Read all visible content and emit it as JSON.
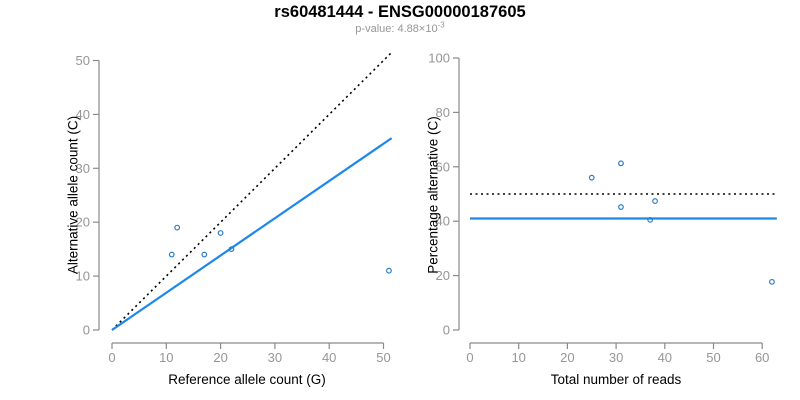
{
  "header": {
    "title": "rs60481444 - ENSG00000187605",
    "pvalue_prefix": "p-value: 4.88×10",
    "pvalue_exponent": "-3"
  },
  "colors": {
    "point": "#2b7cc9",
    "fit_line": "#1e87eb",
    "reference_line": "#000000",
    "axis": "#8a8a8a",
    "tick_label": "#969696",
    "axis_title": "#000000",
    "title": "#000000",
    "subtitle": "#969696"
  },
  "chart_data": [
    {
      "id": "allele-counts",
      "type": "scatter",
      "xlabel": "Reference allele count (G)",
      "ylabel": "Alternative allele count (C)",
      "xlim": [
        0,
        52
      ],
      "ylim": [
        0,
        52
      ],
      "xticks": [
        0,
        10,
        20,
        30,
        40,
        50
      ],
      "yticks": [
        0,
        10,
        20,
        30,
        40,
        50
      ],
      "grid": false,
      "points": [
        {
          "x": 11,
          "y": 14
        },
        {
          "x": 12,
          "y": 19
        },
        {
          "x": 17,
          "y": 14
        },
        {
          "x": 20,
          "y": 18
        },
        {
          "x": 22,
          "y": 15
        },
        {
          "x": 51,
          "y": 11
        }
      ],
      "lines": [
        {
          "name": "identity-line",
          "style": "dotted",
          "color": "#000000",
          "x1": 0,
          "y1": 0,
          "x2": 51.5,
          "y2": 51.5
        },
        {
          "name": "fit-line",
          "style": "solid",
          "color": "#1e87eb",
          "x1": 0,
          "y1": 0,
          "x2": 51.5,
          "y2": 35.6
        }
      ]
    },
    {
      "id": "percentage",
      "type": "scatter",
      "xlabel": "Total number of reads",
      "ylabel": "Percentage alternative (C)",
      "xlim": [
        0,
        63
      ],
      "ylim": [
        0,
        100
      ],
      "xticks": [
        0,
        10,
        20,
        30,
        40,
        50,
        60
      ],
      "yticks": [
        0,
        20,
        40,
        60,
        80,
        100
      ],
      "grid": false,
      "points": [
        {
          "x": 25,
          "y": 56.0
        },
        {
          "x": 31,
          "y": 61.3
        },
        {
          "x": 31,
          "y": 45.2
        },
        {
          "x": 37,
          "y": 40.5
        },
        {
          "x": 38,
          "y": 47.4
        },
        {
          "x": 62,
          "y": 17.7
        }
      ],
      "lines": [
        {
          "name": "null-line",
          "style": "dotted",
          "color": "#000000",
          "x1": 0,
          "y1": 50,
          "x2": 63,
          "y2": 50
        },
        {
          "name": "fit-line",
          "style": "solid",
          "color": "#1e87eb",
          "x1": 0,
          "y1": 41,
          "x2": 63,
          "y2": 41
        }
      ]
    }
  ]
}
